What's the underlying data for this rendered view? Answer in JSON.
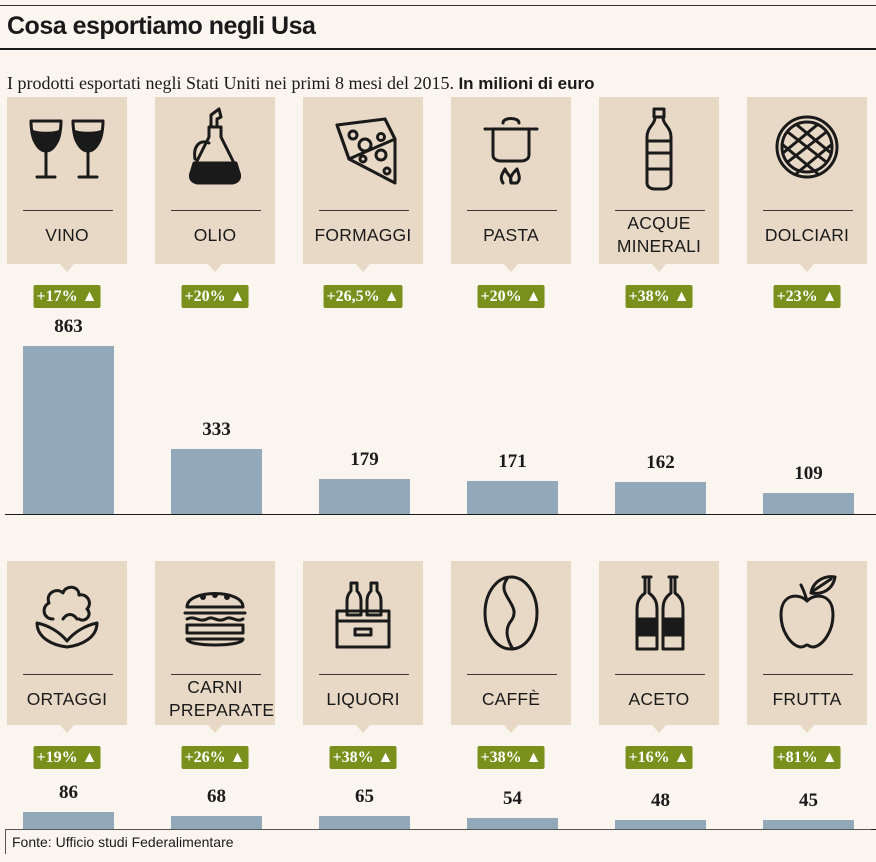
{
  "header": {
    "title": "Cosa esportiamo negli Usa",
    "subtitle": "I prodotti esportati negli Stati Uniti nei primi 8 mesi del 2015.",
    "subtitle_unit": "In milioni di euro"
  },
  "source": "Fonte: Ufficio studi Federalimentare",
  "colors": {
    "card": "#e8d9c6",
    "badge": "#7a8f1c",
    "bar": "#93a8b8",
    "background": "#faf6ef"
  },
  "chart_data": [
    {
      "type": "bar",
      "categories": [
        "VINO",
        "OLIO",
        "FORMAGGI",
        "PASTA",
        "ACQUE MINERALI",
        "DOLCIARI"
      ],
      "values": [
        863,
        333,
        179,
        171,
        162,
        109
      ],
      "changes": [
        "+17%",
        "+20%",
        "+26,5%",
        "+20%",
        "+38%",
        "+23%"
      ],
      "icons": [
        "wine-glasses-icon",
        "oil-cruet-icon",
        "cheese-icon",
        "pot-icon",
        "bottle-icon",
        "waffle-icon"
      ]
    },
    {
      "type": "bar",
      "categories": [
        "ORTAGGI",
        "CARNI PREPARATE",
        "LIQUORI",
        "CAFFÈ",
        "ACETO",
        "FRUTTA"
      ],
      "values": [
        86,
        68,
        65,
        54,
        48,
        45
      ],
      "changes": [
        "+19%",
        "+26%",
        "+38%",
        "+38%",
        "+16%",
        "+81%"
      ],
      "icons": [
        "cauliflower-icon",
        "burger-icon",
        "bottle-crate-icon",
        "coffee-bean-icon",
        "vinegar-bottles-icon",
        "apple-icon"
      ]
    }
  ]
}
